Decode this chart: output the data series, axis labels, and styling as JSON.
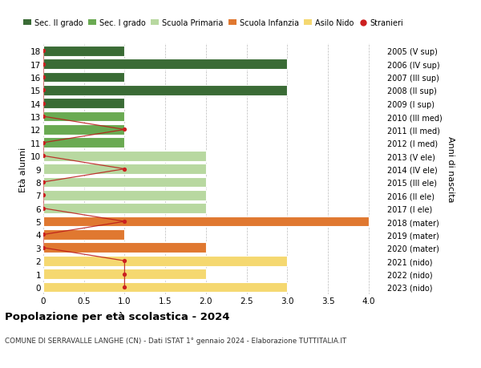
{
  "ages": [
    18,
    17,
    16,
    15,
    14,
    13,
    12,
    11,
    10,
    9,
    8,
    7,
    6,
    5,
    4,
    3,
    2,
    1,
    0
  ],
  "years": [
    "2005 (V sup)",
    "2006 (IV sup)",
    "2007 (III sup)",
    "2008 (II sup)",
    "2009 (I sup)",
    "2010 (III med)",
    "2011 (II med)",
    "2012 (I med)",
    "2013 (V ele)",
    "2014 (IV ele)",
    "2015 (III ele)",
    "2016 (II ele)",
    "2017 (I ele)",
    "2018 (mater)",
    "2019 (mater)",
    "2020 (mater)",
    "2021 (nido)",
    "2022 (nido)",
    "2023 (nido)"
  ],
  "bar_values": [
    1,
    3,
    1,
    3,
    1,
    1,
    1,
    1,
    2,
    2,
    2,
    2,
    2,
    4,
    1,
    2,
    3,
    2,
    3
  ],
  "bar_colors": [
    "#3a6b35",
    "#3a6b35",
    "#3a6b35",
    "#3a6b35",
    "#3a6b35",
    "#6aaa52",
    "#6aaa52",
    "#6aaa52",
    "#b8d8a0",
    "#b8d8a0",
    "#b8d8a0",
    "#b8d8a0",
    "#b8d8a0",
    "#e07830",
    "#e07830",
    "#e07830",
    "#f5d870",
    "#f5d870",
    "#f5d870"
  ],
  "stranieri_x": [
    0,
    0,
    0,
    0,
    0,
    0,
    1,
    0,
    0,
    1,
    0,
    0,
    0,
    1,
    0,
    0,
    1,
    1,
    1
  ],
  "title_bold": "Popolazione per età scolastica - 2024",
  "subtitle": "COMUNE DI SERRAVALLE LANGHE (CN) - Dati ISTAT 1° gennaio 2024 - Elaborazione TUTTITALIA.IT",
  "ylabel_left": "Età alunni",
  "ylabel_right": "Anni di nascita",
  "legend_labels": [
    "Sec. II grado",
    "Sec. I grado",
    "Scuola Primaria",
    "Scuola Infanzia",
    "Asilo Nido",
    "Stranieri"
  ],
  "legend_colors": [
    "#3a6b35",
    "#6aaa52",
    "#b8d8a0",
    "#e07830",
    "#f5d870",
    "#cc2020"
  ],
  "xlim": [
    0,
    4.2
  ],
  "ylim_min": -0.55,
  "ylim_max": 18.55,
  "bg_color": "#ffffff",
  "grid_color": "#bbbbbb",
  "bar_height": 0.78
}
